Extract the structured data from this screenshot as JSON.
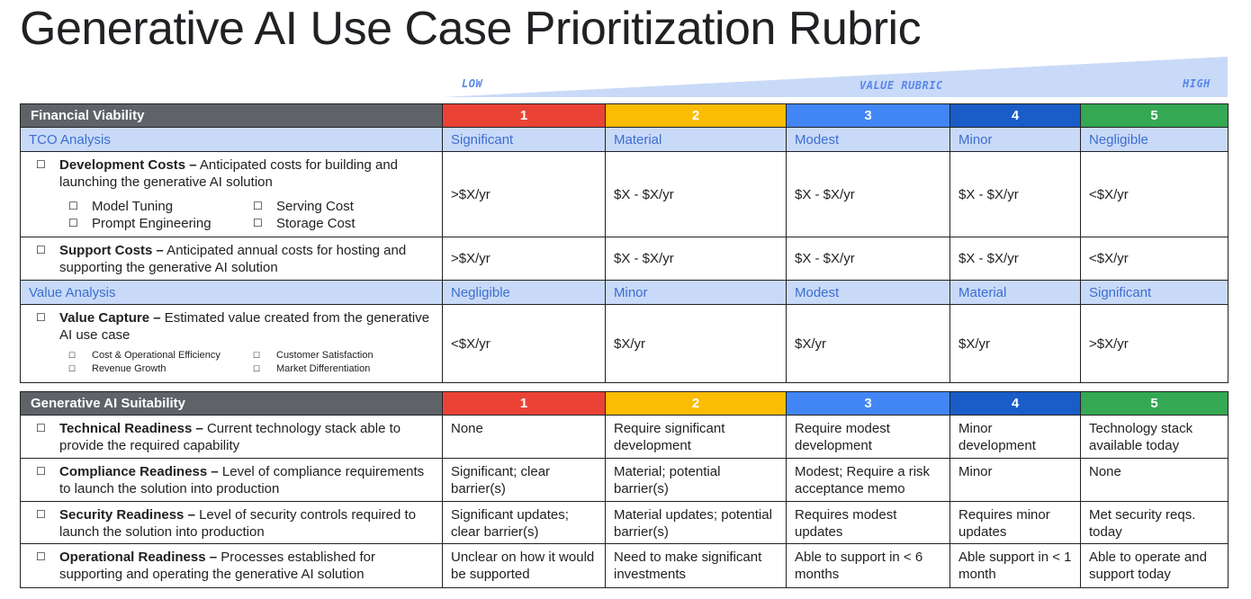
{
  "title": "Generative AI Use Case Prioritization Rubric",
  "rubric": {
    "low": "LOW",
    "label": "VALUE RUBRIC",
    "high": "HIGH"
  },
  "colors": {
    "score_1": "#ea4335",
    "score_2": "#fbbc04",
    "score_3": "#4285f4",
    "score_4": "#1a5cc8",
    "score_5": "#34a853",
    "section_header": "#5f6368",
    "subheader_bg": "#c9daf8",
    "subheader_text": "#3c6ed0"
  },
  "checkbox_icon": "☐",
  "financial": {
    "header": "Financial Viability",
    "scores": [
      "1",
      "2",
      "3",
      "4",
      "5"
    ],
    "tco": {
      "label": "TCO Analysis",
      "levels": [
        "Significant",
        "Material",
        "Modest",
        "Minor",
        "Negligible"
      ]
    },
    "dev": {
      "name": "Development Costs –",
      "desc": " Anticipated costs for building and launching the generative AI solution",
      "options": [
        "Model Tuning",
        "Serving Cost",
        "Prompt Engineering",
        "Storage Cost"
      ],
      "values": [
        ">$X/yr",
        "$X - $X/yr",
        "$X - $X/yr",
        "$X - $X/yr",
        "<$X/yr"
      ]
    },
    "support": {
      "name": "Support Costs –",
      "desc": " Anticipated annual costs for hosting and supporting the generative AI solution",
      "values": [
        ">$X/yr",
        "$X - $X/yr",
        "$X - $X/yr",
        "$X - $X/yr",
        "<$X/yr"
      ]
    },
    "value_analysis": {
      "label": "Value Analysis",
      "levels": [
        "Negligible",
        "Minor",
        "Modest",
        "Material",
        "Significant"
      ]
    },
    "capture": {
      "name": "Value Capture –",
      "desc": " Estimated value created from the generative AI use case",
      "options": [
        "Cost & Operational Efficiency",
        "Customer Satisfaction",
        "Revenue Growth",
        "Market Differentiation"
      ],
      "values": [
        "<$X/yr",
        "$X/yr",
        "$X/yr",
        "$X/yr",
        ">$X/yr"
      ]
    }
  },
  "suitability": {
    "header": "Generative AI Suitability",
    "scores": [
      "1",
      "2",
      "3",
      "4",
      "5"
    ],
    "rows": [
      {
        "name": "Technical Readiness –",
        "desc": " Current technology stack able to provide the required capability",
        "values": [
          "None",
          "Require significant development",
          "Require modest development",
          "Minor development",
          "Technology stack available today"
        ]
      },
      {
        "name": "Compliance Readiness –",
        "desc": " Level of compliance requirements to launch the solution into production",
        "values": [
          "Significant; clear barrier(s)",
          "Material; potential barrier(s)",
          "Modest; Require a risk acceptance memo",
          "Minor",
          "None"
        ]
      },
      {
        "name": "Security Readiness –",
        "desc": " Level of security controls required to launch the solution into production",
        "values": [
          "Significant updates; clear barrier(s)",
          "Material updates; potential barrier(s)",
          "Requires modest updates",
          "Requires minor updates",
          "Met security reqs. today"
        ]
      },
      {
        "name": "Operational Readiness –",
        "desc": " Processes established for supporting and operating the generative AI solution",
        "values": [
          "Unclear on how it would be supported",
          "Need to make significant investments",
          "Able to support in < 6 months",
          "Able support in < 1 month",
          "Able to operate and support today"
        ]
      }
    ]
  }
}
